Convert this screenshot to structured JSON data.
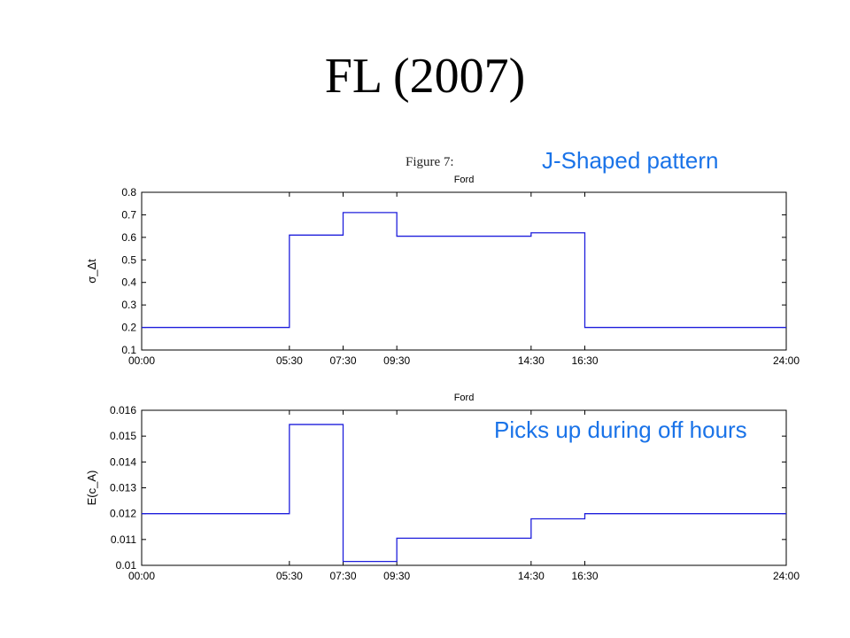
{
  "slide": {
    "title": "FL (2007)",
    "figure_caption": "Figure 7:",
    "annotation_top": "J-Shaped pattern",
    "annotation_bottom": "Picks up during off hours"
  },
  "colors": {
    "line": "#1f1fdc",
    "annotation": "#1a73e8",
    "axis": "#000000"
  },
  "chart_data": [
    {
      "type": "line",
      "step": true,
      "title": "Ford",
      "xlabel": "",
      "ylabel": "σ_Δt",
      "x_ticks": [
        "00:00",
        "05:30",
        "07:30",
        "09:30",
        "14:30",
        "16:30",
        "24:00"
      ],
      "x_tick_hours": [
        0,
        5.5,
        7.5,
        9.5,
        14.5,
        16.5,
        24
      ],
      "xlim": [
        0,
        24
      ],
      "ylim": [
        0.1,
        0.8
      ],
      "y_ticks": [
        "0.1",
        "0.2",
        "0.3",
        "0.4",
        "0.5",
        "0.6",
        "0.7",
        "0.8"
      ],
      "y_tick_values": [
        0.1,
        0.2,
        0.3,
        0.4,
        0.5,
        0.6,
        0.7,
        0.8
      ],
      "series": [
        {
          "x_start": [
            0,
            5.5,
            7.5,
            9.5,
            14.5,
            16.5
          ],
          "x_end": [
            5.5,
            7.5,
            9.5,
            14.5,
            16.5,
            24
          ],
          "values": [
            0.2,
            0.61,
            0.71,
            0.605,
            0.62,
            0.2
          ]
        }
      ]
    },
    {
      "type": "line",
      "step": true,
      "title": "Ford",
      "xlabel": "",
      "ylabel": "E(c_A)",
      "x_ticks": [
        "00:00",
        "05:30",
        "07:30",
        "09:30",
        "14:30",
        "16:30",
        "24:00"
      ],
      "x_tick_hours": [
        0,
        5.5,
        7.5,
        9.5,
        14.5,
        16.5,
        24
      ],
      "xlim": [
        0,
        24
      ],
      "ylim": [
        0.01,
        0.016
      ],
      "y_ticks": [
        "0.01",
        "0.011",
        "0.012",
        "0.013",
        "0.014",
        "0.015",
        "0.016"
      ],
      "y_tick_values": [
        0.01,
        0.011,
        0.012,
        0.013,
        0.014,
        0.015,
        0.016
      ],
      "series": [
        {
          "x_start": [
            0,
            5.5,
            7.5,
            9.5,
            14.5,
            16.5
          ],
          "x_end": [
            5.5,
            7.5,
            9.5,
            14.5,
            16.5,
            24
          ],
          "values": [
            0.012,
            0.01545,
            0.01015,
            0.01105,
            0.0118,
            0.012
          ]
        }
      ]
    }
  ]
}
